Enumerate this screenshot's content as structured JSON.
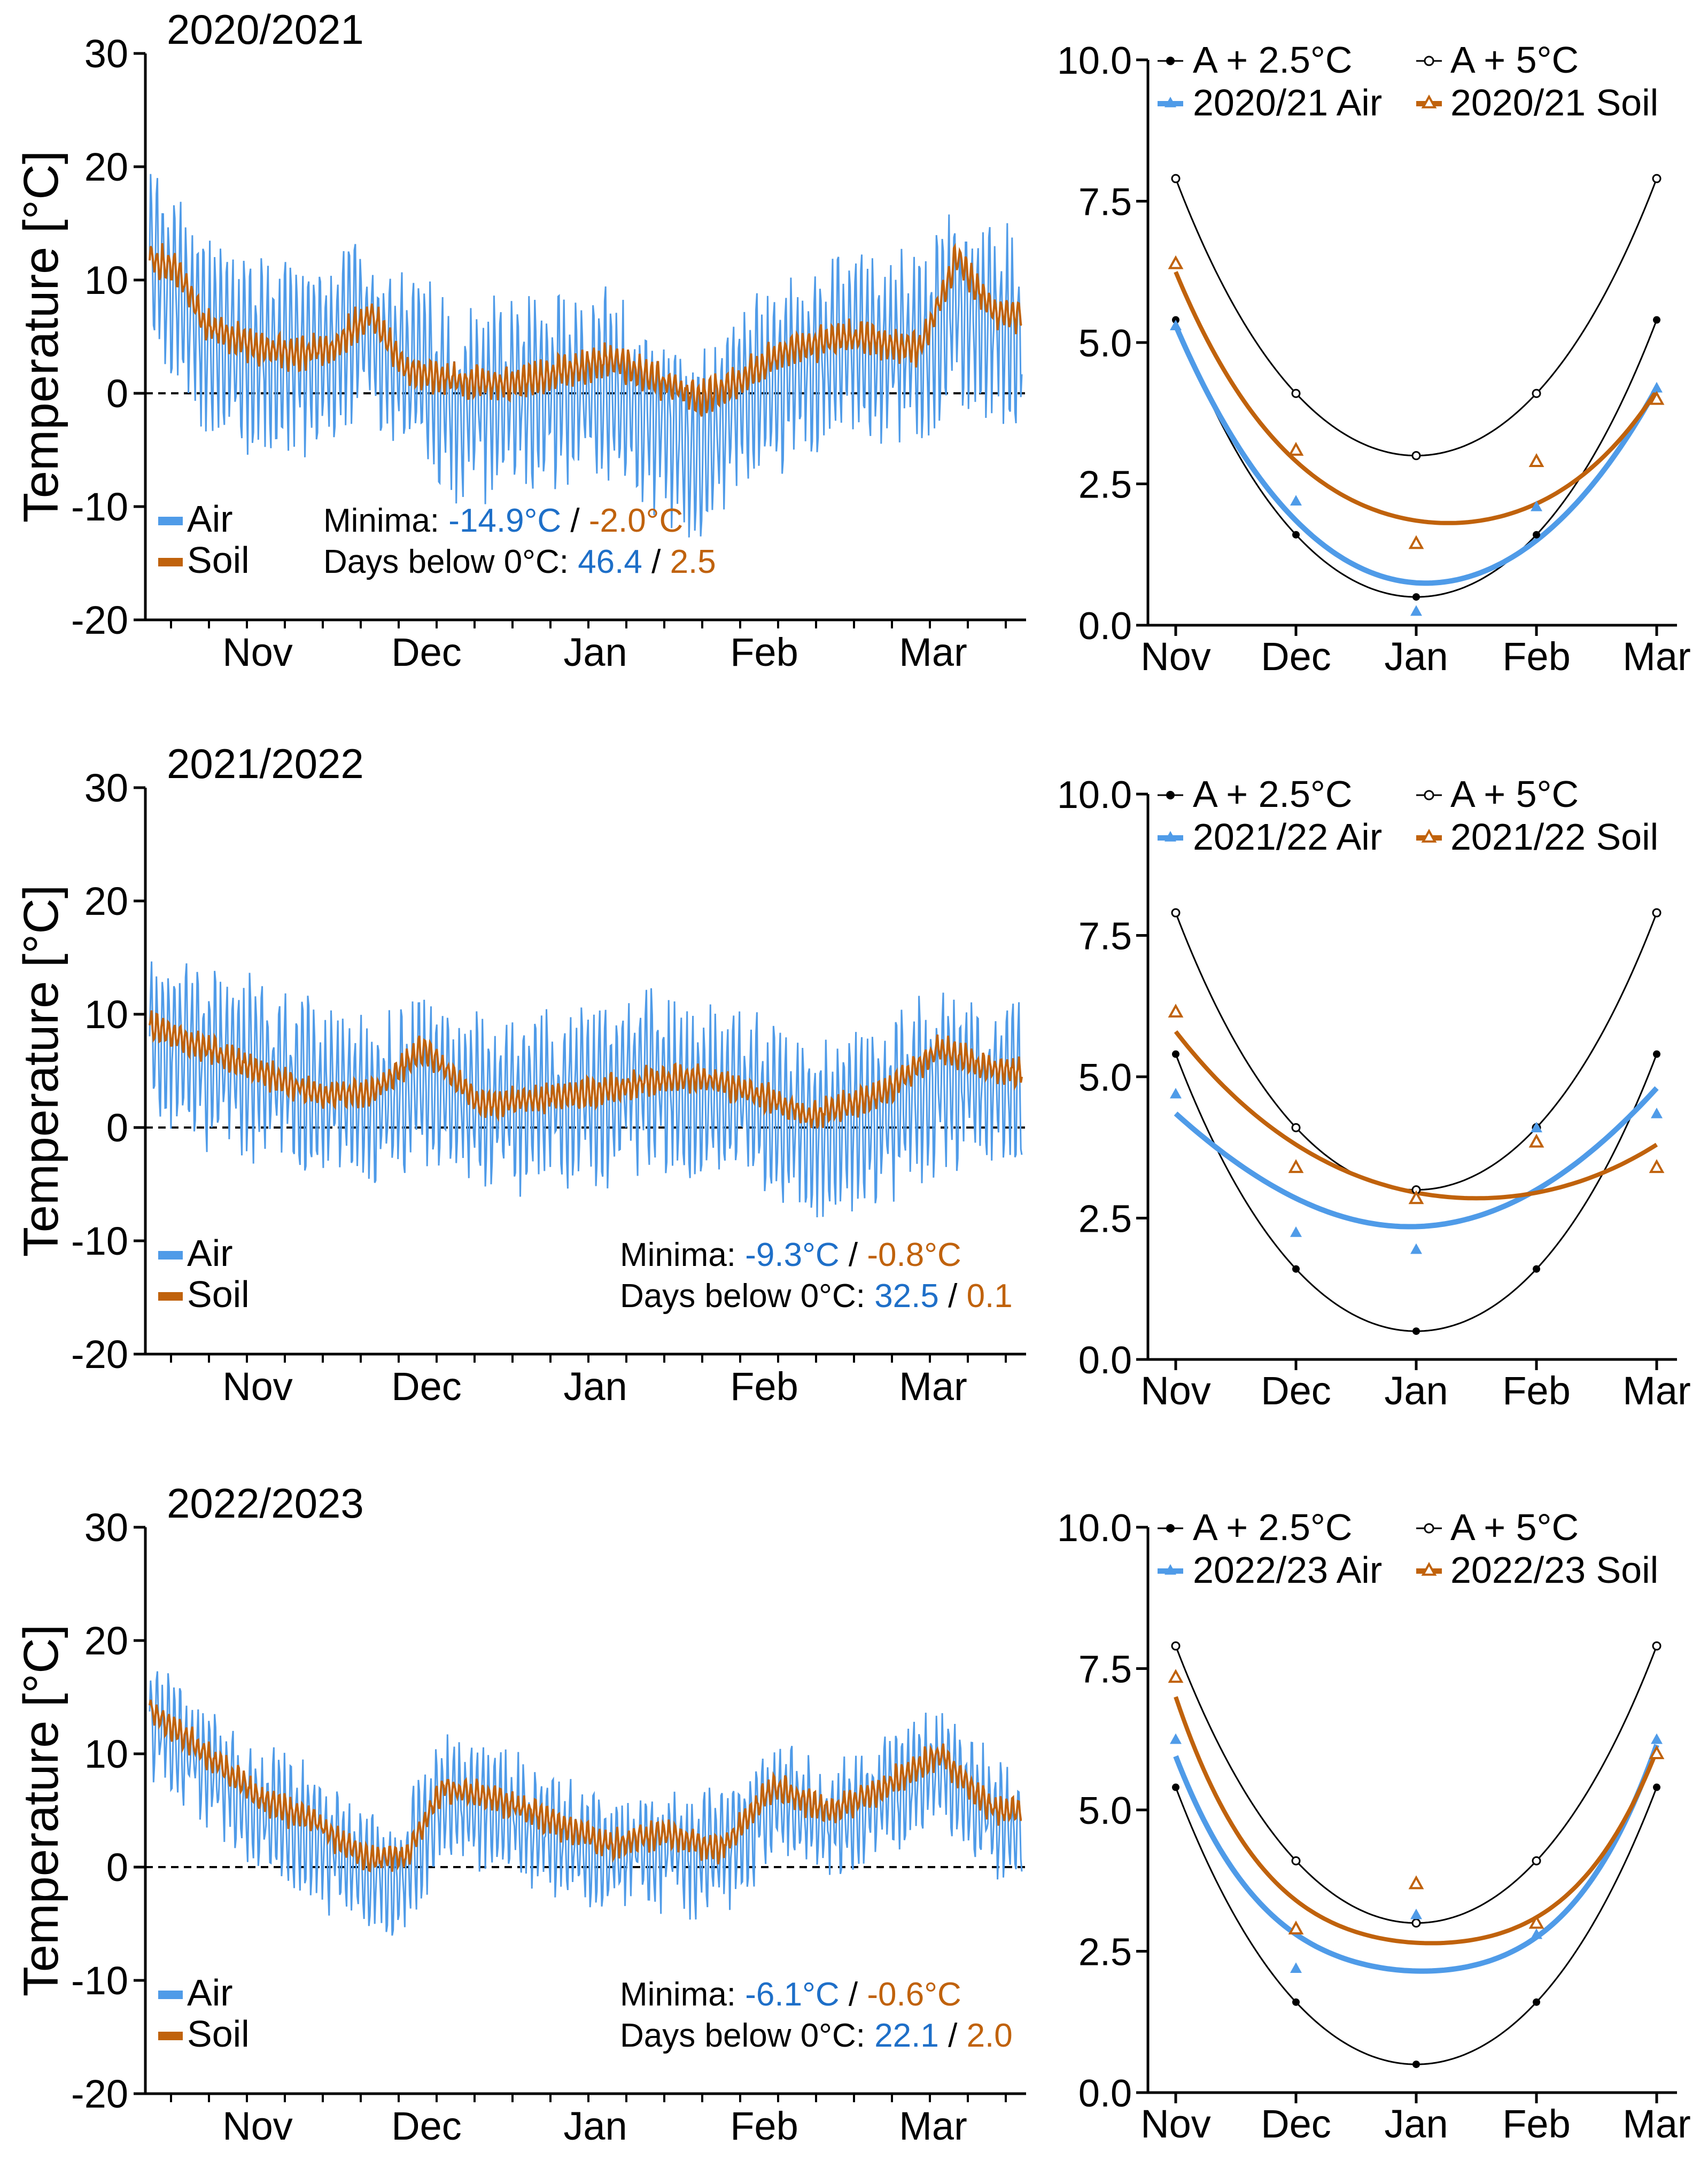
{
  "colors": {
    "air": "#4f9be8",
    "soil": "#c0620c",
    "airText": "#1e6fc8",
    "soilText": "#c0620c",
    "black": "#000000"
  },
  "chart_data": [
    {
      "type": "line",
      "panel": "ts",
      "title": "2020/2021",
      "ylabel": "Temperature [°C]",
      "ylim": [
        -20,
        30
      ],
      "yticks": [
        -20,
        -10,
        0,
        10,
        20,
        30
      ],
      "months": [
        "Nov",
        "Dec",
        "Jan",
        "Feb",
        "Mar"
      ],
      "legend": [
        "Air",
        "Soil"
      ],
      "minima_label": "Minima: ",
      "minima_air": "-14.9°C",
      "sep": " / ",
      "minima_soil": "-2.0°C",
      "days_label": "Days below 0°C: ",
      "days_air": "46.4",
      "days_soil": "2.5",
      "air_base": [
        [
          0,
          12
        ],
        [
          0.15,
          9
        ],
        [
          0.3,
          5
        ],
        [
          0.6,
          3
        ],
        [
          0.8,
          3.5
        ],
        [
          1.0,
          4
        ],
        [
          1.2,
          6
        ],
        [
          1.4,
          2
        ],
        [
          1.7,
          -1
        ],
        [
          2.0,
          0
        ],
        [
          2.3,
          0.5
        ],
        [
          2.5,
          0
        ],
        [
          2.8,
          -2
        ],
        [
          3.0,
          -6
        ],
        [
          3.2,
          0
        ],
        [
          3.5,
          2
        ],
        [
          3.8,
          4
        ],
        [
          4.2,
          4
        ],
        [
          4.4,
          8
        ],
        [
          4.6,
          6
        ]
      ],
      "soil_base": [
        [
          0,
          12
        ],
        [
          0.15,
          11
        ],
        [
          0.3,
          6
        ],
        [
          0.6,
          4
        ],
        [
          0.8,
          3.5
        ],
        [
          1.0,
          4
        ],
        [
          1.2,
          7
        ],
        [
          1.4,
          2
        ],
        [
          1.7,
          1
        ],
        [
          2.0,
          1
        ],
        [
          2.3,
          2
        ],
        [
          2.5,
          3
        ],
        [
          2.8,
          1
        ],
        [
          3.0,
          -0.5
        ],
        [
          3.2,
          1
        ],
        [
          3.5,
          4
        ],
        [
          3.8,
          5
        ],
        [
          4.2,
          4
        ],
        [
          4.4,
          12
        ],
        [
          4.6,
          7
        ]
      ],
      "air_noise": 7,
      "soil_noise": 1.8,
      "seed": 11
    },
    {
      "type": "line",
      "panel": "ts",
      "title": "2021/2022",
      "ylabel": "Temperature [°C]",
      "ylim": [
        -20,
        30
      ],
      "yticks": [
        -20,
        -10,
        0,
        10,
        20,
        30
      ],
      "months": [
        "Nov",
        "Dec",
        "Jan",
        "Feb",
        "Mar"
      ],
      "legend": [
        "Air",
        "Soil"
      ],
      "minima_label": "Minima: ",
      "minima_air": "-9.3°C",
      "sep": " / ",
      "minima_soil": "-0.8°C",
      "days_label": "Days below 0°C: ",
      "days_air": "32.5",
      "days_soil": "0.1",
      "air_base": [
        [
          0,
          9
        ],
        [
          0.3,
          6
        ],
        [
          0.6,
          5
        ],
        [
          0.9,
          3
        ],
        [
          1.2,
          2
        ],
        [
          1.5,
          4
        ],
        [
          1.8,
          2
        ],
        [
          2.1,
          2.5
        ],
        [
          2.4,
          3
        ],
        [
          2.7,
          4
        ],
        [
          3.0,
          3
        ],
        [
          3.3,
          2
        ],
        [
          3.6,
          0
        ],
        [
          4.0,
          1
        ],
        [
          4.3,
          4
        ],
        [
          4.6,
          4
        ]
      ],
      "soil_base": [
        [
          0,
          9
        ],
        [
          0.3,
          7
        ],
        [
          0.6,
          5
        ],
        [
          0.9,
          3
        ],
        [
          1.2,
          3
        ],
        [
          1.5,
          7
        ],
        [
          1.8,
          2
        ],
        [
          2.1,
          2.5
        ],
        [
          2.4,
          3
        ],
        [
          2.7,
          4
        ],
        [
          3.0,
          4.5
        ],
        [
          3.3,
          3
        ],
        [
          3.6,
          1
        ],
        [
          4.0,
          3
        ],
        [
          4.3,
          7
        ],
        [
          4.6,
          5
        ]
      ],
      "air_noise": 6.5,
      "soil_noise": 1.5,
      "seed": 23
    },
    {
      "type": "line",
      "panel": "ts",
      "title": "2022/2023",
      "ylabel": "Temperature [°C]",
      "ylim": [
        -20,
        30
      ],
      "yticks": [
        -20,
        -10,
        0,
        10,
        20,
        30
      ],
      "months": [
        "Nov",
        "Dec",
        "Jan",
        "Feb",
        "Mar"
      ],
      "legend": [
        "Air",
        "Soil"
      ],
      "minima_label": "Minima: ",
      "minima_air": "-6.1°C",
      "sep": " / ",
      "minima_soil": "-0.6°C",
      "days_label": "Days below 0°C: ",
      "days_air": "22.1",
      "days_soil": "2.0",
      "air_base": [
        [
          0,
          13
        ],
        [
          0.3,
          9
        ],
        [
          0.6,
          5
        ],
        [
          0.9,
          3
        ],
        [
          1.2,
          -1
        ],
        [
          1.4,
          0
        ],
        [
          1.6,
          6
        ],
        [
          1.9,
          5
        ],
        [
          2.2,
          3
        ],
        [
          2.5,
          1
        ],
        [
          2.8,
          2
        ],
        [
          3.1,
          1
        ],
        [
          3.4,
          6
        ],
        [
          3.7,
          4
        ],
        [
          4.0,
          6
        ],
        [
          4.3,
          9
        ],
        [
          4.6,
          4
        ]
      ],
      "soil_base": [
        [
          0,
          14
        ],
        [
          0.3,
          10
        ],
        [
          0.6,
          6
        ],
        [
          0.9,
          4
        ],
        [
          1.2,
          0.5
        ],
        [
          1.4,
          1
        ],
        [
          1.6,
          7
        ],
        [
          1.9,
          6
        ],
        [
          2.2,
          4
        ],
        [
          2.5,
          2
        ],
        [
          2.8,
          3
        ],
        [
          3.1,
          1.5
        ],
        [
          3.4,
          7
        ],
        [
          3.7,
          5
        ],
        [
          4.0,
          7
        ],
        [
          4.3,
          10
        ],
        [
          4.6,
          5
        ]
      ],
      "air_noise": 4.5,
      "soil_noise": 1.5,
      "seed": 37
    },
    {
      "type": "scatter",
      "panel": "fit",
      "ylim": [
        0.0,
        10.0
      ],
      "yticks": [
        "0.0",
        "2.5",
        "5.0",
        "7.5",
        "10.0"
      ],
      "months": [
        "Nov",
        "Dec",
        "Jan",
        "Feb",
        "Mar"
      ],
      "legend": [
        "A + 2.5°C",
        "A + 5°C",
        "2020/21 Air",
        "2020/21 Soil"
      ],
      "a25": [
        5.4,
        1.6,
        0.5,
        1.6,
        5.4
      ],
      "a5": [
        7.9,
        4.1,
        3.0,
        4.1,
        7.9
      ],
      "air_pts": [
        5.3,
        2.2,
        0.25,
        2.1,
        4.2
      ],
      "soil_pts": [
        6.4,
        3.1,
        1.45,
        2.9,
        4.0
      ],
      "air_fit": [
        5.3,
        1.85,
        0.75,
        1.5,
        4.2
      ],
      "soil_fit": [
        6.25,
        2.9,
        1.85,
        2.15,
        4.15
      ]
    },
    {
      "type": "scatter",
      "panel": "fit",
      "ylim": [
        0.0,
        10.0
      ],
      "yticks": [
        "0.0",
        "2.5",
        "5.0",
        "7.5",
        "10.0"
      ],
      "months": [
        "Nov",
        "Dec",
        "Jan",
        "Feb",
        "Mar"
      ],
      "legend": [
        "A + 2.5°C",
        "A + 5°C",
        "2021/22 Air",
        "2021/22 Soil"
      ],
      "a25": [
        5.4,
        1.6,
        0.5,
        1.6,
        5.4
      ],
      "a5": [
        7.9,
        4.1,
        3.0,
        4.1,
        7.9
      ],
      "air_pts": [
        4.7,
        2.25,
        1.95,
        4.1,
        4.35
      ],
      "soil_pts": [
        6.15,
        3.4,
        2.85,
        3.85,
        3.4
      ],
      "air_fit": [
        4.35,
        2.85,
        2.35,
        3.0,
        4.8
      ],
      "soil_fit": [
        5.8,
        3.8,
        2.95,
        2.95,
        3.8
      ]
    },
    {
      "type": "scatter",
      "panel": "fit",
      "ylim": [
        0.0,
        10.0
      ],
      "yticks": [
        "0.0",
        "2.5",
        "5.0",
        "7.5",
        "10.0"
      ],
      "months": [
        "Nov",
        "Dec",
        "Jan",
        "Feb",
        "Mar"
      ],
      "legend": [
        "A + 2.5°C",
        "A + 5°C",
        "2022/23 Air",
        "2022/23 Soil"
      ],
      "a25": [
        5.4,
        1.6,
        0.5,
        1.6,
        5.4
      ],
      "a5": [
        7.9,
        4.1,
        3.0,
        4.1,
        7.9
      ],
      "air_pts": [
        6.25,
        2.2,
        3.15,
        2.8,
        6.25
      ],
      "soil_pts": [
        7.35,
        2.9,
        3.7,
        3.0,
        6.0
      ],
      "air_fit": [
        5.95,
        2.8,
        2.15,
        2.75,
        6.15
      ],
      "soil_fit": [
        7.0,
        3.4,
        2.65,
        3.1,
        6.05
      ]
    }
  ]
}
